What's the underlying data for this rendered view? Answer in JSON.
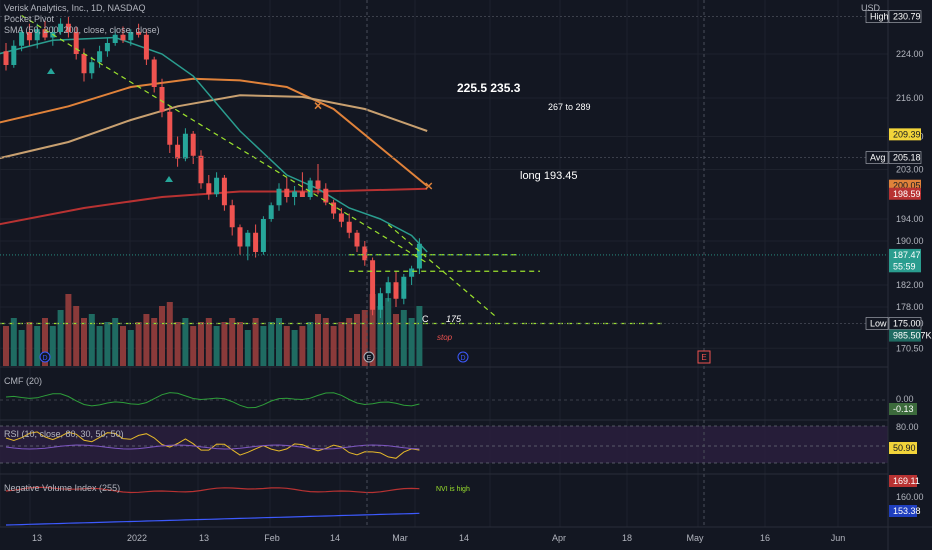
{
  "symbol": {
    "title": "Verisk Analytics, Inc., 1D, NASDAQ",
    "line2": "Pocket Pivot",
    "line3": "SMA (50, 200, 200, close, close, close)",
    "currency": "USD"
  },
  "colors": {
    "bg": "#131722",
    "up": "#26a69a",
    "down": "#ef5350",
    "upVol": "#1f6b62",
    "downVol": "#8a3a3a",
    "sma50": "#e0823a",
    "sma100": "#c8a070",
    "sma200": "#b83232",
    "ema": "#2a9d8f",
    "trend": "#9be22d",
    "grid": "#1e222d"
  },
  "price_scale": {
    "ticks": [
      "224.00",
      "216.00",
      "209.00",
      "203.00",
      "194.00",
      "190.00",
      "182.00",
      "178.00",
      "175.00",
      "170.50"
    ],
    "tags": [
      {
        "label": "High",
        "value": "230.79",
        "style": "dark"
      },
      {
        "label": "",
        "value": "209.39",
        "style": "yellow"
      },
      {
        "label": "Avg",
        "value": "205.18",
        "style": "dark"
      },
      {
        "label": "",
        "value": "200.05",
        "style": "orange"
      },
      {
        "label": "",
        "value": "198.59",
        "style": "red"
      },
      {
        "label": "",
        "value": "187.47",
        "style": "teal"
      },
      {
        "label": "",
        "value": "55:59",
        "style": "teal"
      },
      {
        "label": "Low",
        "value": "175.00",
        "style": "dark"
      },
      {
        "label": "",
        "value": "985.507K",
        "style": "tealdark"
      }
    ]
  },
  "time_labels": [
    "13",
    "2022",
    "13",
    "Feb",
    "14",
    "Mar",
    "14",
    "Apr",
    "18",
    "May",
    "16",
    "Jun"
  ],
  "annotations": {
    "targets": "225.5  235.3",
    "range": "267 to 289",
    "long": "long 193.45",
    "c_label": "C",
    "level_175": "175",
    "stop": "stop",
    "nvi_note": "NVI is high",
    "earnings_marker": "E",
    "dividend_marker": "D"
  },
  "cmf": {
    "label": "CMF (20)",
    "ticks": [
      "0.00"
    ],
    "tag": "-0.13"
  },
  "rsi": {
    "label": "RSI (10, close, 80, 30, 50, 50)",
    "ticks": [
      "80.00"
    ],
    "tag": "50.90"
  },
  "nvi": {
    "label": "Negative Volume Index (255)",
    "ticks": [
      "160.00"
    ],
    "tags": [
      "169.11",
      "153.38"
    ]
  },
  "chart_data": {
    "type": "candlestick",
    "title": "Verisk Analytics, Inc., 1D, NASDAQ",
    "x_note": "daily bars, mid-Dec 2021 to early Mar 2022",
    "ohlc": [
      [
        224.5,
        226.0,
        221.0,
        222.0
      ],
      [
        222.0,
        226.5,
        221.5,
        225.5
      ],
      [
        225.5,
        229.0,
        224.5,
        228.0
      ],
      [
        228.0,
        229.5,
        225.5,
        226.5
      ],
      [
        226.5,
        229.5,
        225.0,
        228.5
      ],
      [
        228.5,
        230.0,
        226.5,
        227.0
      ],
      [
        227.0,
        229.0,
        225.5,
        228.0
      ],
      [
        228.0,
        230.5,
        227.5,
        229.5
      ],
      [
        229.5,
        230.8,
        227.0,
        228.0
      ],
      [
        228.0,
        229.0,
        223.0,
        224.0
      ],
      [
        224.0,
        225.0,
        219.0,
        220.5
      ],
      [
        220.5,
        223.5,
        219.5,
        222.5
      ],
      [
        222.5,
        225.5,
        221.5,
        224.5
      ],
      [
        224.5,
        227.0,
        223.5,
        226.0
      ],
      [
        226.0,
        228.5,
        225.5,
        227.5
      ],
      [
        227.5,
        229.0,
        226.0,
        226.5
      ],
      [
        226.5,
        228.5,
        225.5,
        228.0
      ],
      [
        228.0,
        229.5,
        227.0,
        227.5
      ],
      [
        227.5,
        228.5,
        222.0,
        223.0
      ],
      [
        223.0,
        223.5,
        217.0,
        218.0
      ],
      [
        218.0,
        219.5,
        212.5,
        213.5
      ],
      [
        213.5,
        214.5,
        206.0,
        207.5
      ],
      [
        207.5,
        209.0,
        203.5,
        205.0
      ],
      [
        205.0,
        210.5,
        204.5,
        209.5
      ],
      [
        209.5,
        210.0,
        204.0,
        205.5
      ],
      [
        205.5,
        206.5,
        199.5,
        200.5
      ],
      [
        200.5,
        202.0,
        197.5,
        198.5
      ],
      [
        198.5,
        202.5,
        198.0,
        201.5
      ],
      [
        201.5,
        202.0,
        195.5,
        196.5
      ],
      [
        196.5,
        197.5,
        191.0,
        192.5
      ],
      [
        192.5,
        193.0,
        187.5,
        189.0
      ],
      [
        189.0,
        192.0,
        186.5,
        191.5
      ],
      [
        191.5,
        193.0,
        187.0,
        188.0
      ],
      [
        188.0,
        194.5,
        187.5,
        194.0
      ],
      [
        194.0,
        197.0,
        193.5,
        196.5
      ],
      [
        196.5,
        200.5,
        195.5,
        199.5
      ],
      [
        199.5,
        201.5,
        197.0,
        198.0
      ],
      [
        198.0,
        200.0,
        196.5,
        199.0
      ],
      [
        199.0,
        202.5,
        198.5,
        198.0
      ],
      [
        198.0,
        201.5,
        197.5,
        201.0
      ],
      [
        201.0,
        204.0,
        198.5,
        199.5
      ],
      [
        199.5,
        200.5,
        196.5,
        197.0
      ],
      [
        197.0,
        197.5,
        194.0,
        195.0
      ],
      [
        195.0,
        196.0,
        192.5,
        193.5
      ],
      [
        193.5,
        195.0,
        190.5,
        191.5
      ],
      [
        191.5,
        192.0,
        188.0,
        189.0
      ],
      [
        189.0,
        190.0,
        185.5,
        186.5
      ],
      [
        186.5,
        187.0,
        176.5,
        177.5
      ],
      [
        177.5,
        181.5,
        176.0,
        180.5
      ],
      [
        180.5,
        183.5,
        179.0,
        182.5
      ],
      [
        182.5,
        184.5,
        178.0,
        179.5
      ],
      [
        179.5,
        184.0,
        178.5,
        183.5
      ],
      [
        183.5,
        185.5,
        182.0,
        185.0
      ],
      [
        185.0,
        190.5,
        184.0,
        189.5
      ]
    ],
    "volume_relative": [
      0.5,
      0.6,
      0.45,
      0.55,
      0.5,
      0.6,
      0.5,
      0.7,
      0.9,
      0.75,
      0.6,
      0.65,
      0.5,
      0.55,
      0.6,
      0.5,
      0.45,
      0.55,
      0.65,
      0.6,
      0.75,
      0.8,
      0.55,
      0.6,
      0.5,
      0.55,
      0.6,
      0.5,
      0.55,
      0.6,
      0.55,
      0.45,
      0.6,
      0.5,
      0.55,
      0.6,
      0.5,
      0.45,
      0.5,
      0.55,
      0.65,
      0.6,
      0.5,
      0.55,
      0.6,
      0.65,
      0.7,
      0.9,
      0.75,
      0.85,
      0.65,
      0.7,
      0.6,
      0.75
    ],
    "horizontal_levels": [
      175,
      187.5,
      184.5
    ],
    "series": [
      {
        "name": "SMA 50"
      },
      {
        "name": "SMA 200"
      },
      {
        "name": "SMA 200"
      }
    ]
  }
}
